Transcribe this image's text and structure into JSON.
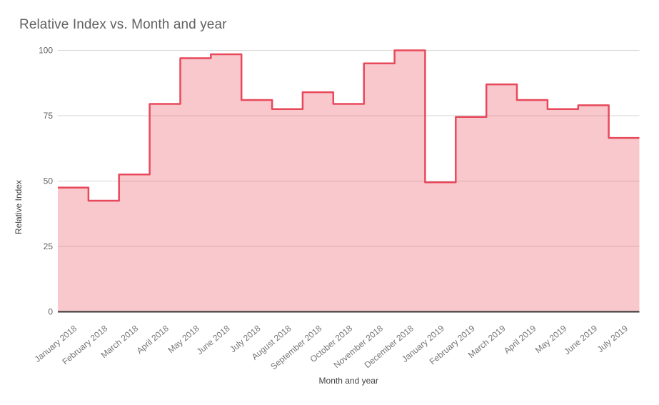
{
  "chart": {
    "title": "Relative Index vs. Month and year"
  },
  "chart_data": {
    "type": "area",
    "variant": "stepped",
    "title": "Relative Index vs. Month and year",
    "xlabel": "Month and year",
    "ylabel": "Relative Index",
    "categories": [
      "January 2018",
      "February 2018",
      "March 2018",
      "April 2018",
      "May 2018",
      "June 2018",
      "July 2018",
      "August 2018",
      "September 2018",
      "October 2018",
      "November 2018",
      "December 2018",
      "January 2019",
      "February 2019",
      "March 2019",
      "April 2019",
      "May 2019",
      "June 2019",
      "July 2019"
    ],
    "series": [
      {
        "name": "Relative Index",
        "values": [
          47.5,
          42.5,
          52.5,
          79.5,
          97,
          98.5,
          81,
          77.5,
          84,
          79.5,
          95,
          100,
          49.5,
          74.5,
          87,
          81,
          77.5,
          79,
          66.5
        ]
      }
    ],
    "ylim": [
      0,
      100
    ],
    "yticks": [
      0,
      25,
      50,
      75,
      100
    ],
    "grid": true,
    "legend": "none",
    "colors": {
      "stroke": "#e8495a",
      "fill": "rgba(232,73,90,0.3)",
      "gridline": "#d6d6d6",
      "baseline": "#333333",
      "title_text": "#616161",
      "ytick_text": "#616161",
      "xtick_text": "#757575",
      "axis_title_text": "#424242"
    }
  }
}
